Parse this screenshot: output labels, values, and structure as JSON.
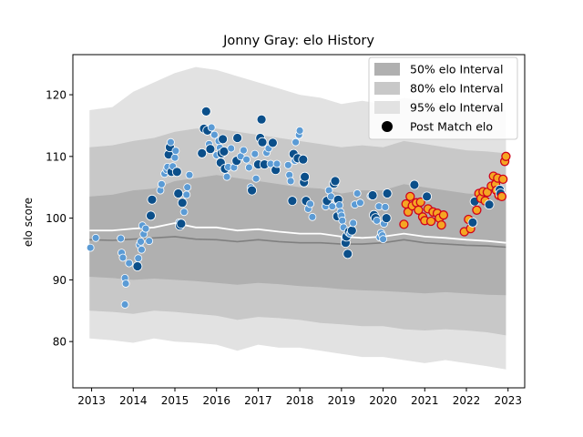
{
  "chart_data": {
    "type": "scatter",
    "title": "Jonny Gray: elo History",
    "xlabel": "",
    "ylabel": "elo score",
    "xlim": [
      2012.55,
      2023.4
    ],
    "ylim": [
      72.5,
      126.5
    ],
    "xticks": [
      2013,
      2014,
      2015,
      2016,
      2017,
      2018,
      2019,
      2020,
      2021,
      2022,
      2023
    ],
    "yticks": [
      80,
      90,
      100,
      110,
      120
    ],
    "grid": false,
    "legend_position": "top-right",
    "legend": {
      "band50": "50% elo Interval",
      "band80": "80% elo Interval",
      "band95": "95% elo Interval",
      "points": "Post Match elo"
    },
    "colors": {
      "band50": "#b0b0b0",
      "band80": "#c8c8c8",
      "band95": "#e2e2e2",
      "median": "#808080",
      "mean": "#ffffff",
      "point_dark": "#0b4f8a",
      "point_light": "#5b9bd5",
      "point_recent": "#f5a623",
      "point_recent_edge": "#d0021b"
    },
    "bands": {
      "x": [
        2012.95,
        2013.5,
        2014.0,
        2014.5,
        2015.0,
        2015.5,
        2016.0,
        2016.5,
        2017.0,
        2017.5,
        2018.0,
        2018.5,
        2019.0,
        2019.5,
        2020.0,
        2020.5,
        2021.0,
        2021.5,
        2022.0,
        2022.5,
        2022.95
      ],
      "p95_low": [
        80.5,
        80.2,
        79.8,
        80.5,
        80.0,
        79.8,
        79.5,
        78.5,
        79.5,
        79.0,
        79.0,
        78.5,
        78.0,
        77.5,
        77.5,
        77.0,
        76.5,
        77.0,
        76.5,
        76.0,
        75.5
      ],
      "p80_low": [
        85.0,
        84.8,
        84.5,
        85.0,
        84.8,
        84.5,
        84.2,
        83.5,
        84.0,
        83.8,
        83.5,
        83.0,
        82.8,
        82.5,
        82.5,
        82.0,
        81.8,
        82.0,
        81.8,
        81.5,
        81.0
      ],
      "p50_low": [
        90.5,
        90.3,
        90.0,
        90.2,
        90.0,
        89.8,
        89.5,
        89.2,
        89.5,
        89.3,
        89.0,
        88.8,
        88.5,
        88.3,
        88.2,
        88.0,
        87.8,
        88.0,
        87.8,
        87.6,
        87.5
      ],
      "p50_high": [
        103.5,
        103.8,
        104.5,
        104.8,
        106.0,
        106.5,
        107.0,
        106.5,
        106.0,
        105.5,
        105.0,
        104.8,
        104.0,
        104.5,
        104.5,
        105.5,
        105.0,
        104.5,
        104.0,
        103.8,
        103.5
      ],
      "p80_high": [
        111.5,
        111.8,
        112.5,
        113.0,
        114.0,
        114.5,
        114.5,
        114.0,
        113.5,
        113.0,
        112.5,
        112.0,
        111.5,
        111.8,
        111.5,
        112.5,
        112.0,
        111.5,
        111.0,
        110.8,
        110.5
      ],
      "p95_high": [
        117.5,
        118.0,
        120.5,
        122.0,
        123.5,
        124.5,
        124.0,
        123.0,
        122.0,
        121.0,
        120.0,
        119.5,
        118.5,
        119.0,
        118.5,
        119.5,
        119.0,
        118.5,
        118.0,
        117.8,
        117.5
      ],
      "median": [
        96.5,
        96.4,
        96.6,
        96.8,
        97.0,
        96.6,
        96.5,
        96.2,
        96.5,
        96.2,
        96.0,
        96.0,
        95.8,
        95.8,
        96.0,
        96.5,
        96.0,
        95.8,
        95.6,
        95.5,
        95.3
      ],
      "mean": [
        98.0,
        98.0,
        98.3,
        98.5,
        99.2,
        98.5,
        98.5,
        98.0,
        98.2,
        97.8,
        97.5,
        97.5,
        97.0,
        96.8,
        97.0,
        97.5,
        97.0,
        96.8,
        96.5,
        96.3,
        96.0
      ]
    },
    "series": [
      {
        "name": "Post Match elo",
        "points": [
          [
            2012.97,
            95.2,
            "l"
          ],
          [
            2013.1,
            96.8,
            "l"
          ],
          [
            2013.7,
            96.7,
            "l"
          ],
          [
            2013.72,
            94.4,
            "l"
          ],
          [
            2013.75,
            93.6,
            "l"
          ],
          [
            2013.8,
            90.3,
            "l"
          ],
          [
            2013.82,
            89.4,
            "l"
          ],
          [
            2013.8,
            86.0,
            "l"
          ],
          [
            2013.9,
            92.7,
            "l"
          ],
          [
            2014.1,
            92.2,
            "d"
          ],
          [
            2014.12,
            93.5,
            "l"
          ],
          [
            2014.15,
            95.7,
            "l"
          ],
          [
            2014.18,
            96.2,
            "l"
          ],
          [
            2014.2,
            94.9,
            "l"
          ],
          [
            2014.25,
            97.4,
            "l"
          ],
          [
            2014.22,
            98.8,
            "l"
          ],
          [
            2014.3,
            98.3,
            "l"
          ],
          [
            2014.38,
            96.3,
            "l"
          ],
          [
            2014.42,
            100.4,
            "d"
          ],
          [
            2014.45,
            103.0,
            "d"
          ],
          [
            2014.65,
            104.5,
            "l"
          ],
          [
            2014.68,
            105.5,
            "l"
          ],
          [
            2014.75,
            107.2,
            "l"
          ],
          [
            2014.8,
            107.8,
            "l"
          ],
          [
            2014.82,
            108.3,
            "l"
          ],
          [
            2014.85,
            110.3,
            "d"
          ],
          [
            2014.88,
            111.5,
            "d"
          ],
          [
            2014.9,
            112.3,
            "l"
          ],
          [
            2014.92,
            107.5,
            "d"
          ],
          [
            2014.95,
            108.4,
            "l"
          ],
          [
            2015.0,
            109.8,
            "l"
          ],
          [
            2015.02,
            110.9,
            "l"
          ],
          [
            2015.05,
            107.5,
            "d"
          ],
          [
            2015.08,
            104.0,
            "d"
          ],
          [
            2015.1,
            99.3,
            "l"
          ],
          [
            2015.12,
            98.8,
            "d"
          ],
          [
            2015.15,
            99.1,
            "d"
          ],
          [
            2015.18,
            102.5,
            "d"
          ],
          [
            2015.22,
            101.0,
            "l"
          ],
          [
            2015.28,
            103.8,
            "l"
          ],
          [
            2015.3,
            105.0,
            "l"
          ],
          [
            2015.35,
            107.0,
            "l"
          ],
          [
            2015.65,
            110.5,
            "d"
          ],
          [
            2015.7,
            114.5,
            "d"
          ],
          [
            2015.75,
            117.3,
            "d"
          ],
          [
            2015.78,
            114.2,
            "d"
          ],
          [
            2015.82,
            112.0,
            "l"
          ],
          [
            2015.85,
            111.2,
            "d"
          ],
          [
            2015.88,
            114.7,
            "l"
          ],
          [
            2015.95,
            113.5,
            "l"
          ],
          [
            2016.0,
            110.2,
            "l"
          ],
          [
            2016.05,
            112.5,
            "l"
          ],
          [
            2016.08,
            111.4,
            "l"
          ],
          [
            2016.1,
            109.0,
            "d"
          ],
          [
            2016.12,
            110.5,
            "d"
          ],
          [
            2016.15,
            112.8,
            "d"
          ],
          [
            2016.18,
            110.8,
            "d"
          ],
          [
            2016.2,
            108.0,
            "d"
          ],
          [
            2016.25,
            106.7,
            "l"
          ],
          [
            2016.28,
            108.3,
            "l"
          ],
          [
            2016.35,
            111.3,
            "l"
          ],
          [
            2016.42,
            108.2,
            "l"
          ],
          [
            2016.48,
            109.3,
            "d"
          ],
          [
            2016.5,
            113.0,
            "d"
          ],
          [
            2016.58,
            110.0,
            "l"
          ],
          [
            2016.65,
            111.0,
            "l"
          ],
          [
            2016.72,
            109.5,
            "l"
          ],
          [
            2016.78,
            108.2,
            "l"
          ],
          [
            2016.82,
            105.0,
            "l"
          ],
          [
            2016.85,
            104.5,
            "d"
          ],
          [
            2016.92,
            110.4,
            "l"
          ],
          [
            2016.95,
            106.4,
            "l"
          ],
          [
            2017.0,
            108.7,
            "d"
          ],
          [
            2017.05,
            113.0,
            "d"
          ],
          [
            2017.08,
            116.0,
            "d"
          ],
          [
            2017.1,
            112.3,
            "d"
          ],
          [
            2017.15,
            108.7,
            "d"
          ],
          [
            2017.2,
            110.6,
            "l"
          ],
          [
            2017.25,
            111.3,
            "l"
          ],
          [
            2017.3,
            108.8,
            "l"
          ],
          [
            2017.35,
            112.2,
            "d"
          ],
          [
            2017.42,
            107.8,
            "d"
          ],
          [
            2017.45,
            108.8,
            "l"
          ],
          [
            2017.72,
            108.6,
            "l"
          ],
          [
            2017.75,
            107.0,
            "l"
          ],
          [
            2017.78,
            106.0,
            "l"
          ],
          [
            2017.82,
            102.8,
            "d"
          ],
          [
            2017.85,
            110.4,
            "d"
          ],
          [
            2017.88,
            109.3,
            "l"
          ],
          [
            2017.9,
            112.3,
            "l"
          ],
          [
            2017.95,
            109.7,
            "d"
          ],
          [
            2017.98,
            113.5,
            "l"
          ],
          [
            2018.0,
            114.2,
            "l"
          ],
          [
            2018.08,
            109.5,
            "d"
          ],
          [
            2018.1,
            105.8,
            "d"
          ],
          [
            2018.12,
            106.7,
            "d"
          ],
          [
            2018.15,
            102.8,
            "d"
          ],
          [
            2018.2,
            101.5,
            "l"
          ],
          [
            2018.25,
            102.3,
            "l"
          ],
          [
            2018.3,
            100.2,
            "l"
          ],
          [
            2018.62,
            101.9,
            "l"
          ],
          [
            2018.65,
            102.8,
            "d"
          ],
          [
            2018.7,
            104.5,
            "l"
          ],
          [
            2018.75,
            103.5,
            "l"
          ],
          [
            2018.78,
            101.9,
            "l"
          ],
          [
            2018.82,
            105.6,
            "d"
          ],
          [
            2018.85,
            106.0,
            "d"
          ],
          [
            2018.88,
            102.8,
            "l"
          ],
          [
            2018.9,
            100.3,
            "d"
          ],
          [
            2018.92,
            103.0,
            "d"
          ],
          [
            2018.95,
            102.1,
            "l"
          ],
          [
            2018.98,
            101.0,
            "l"
          ],
          [
            2019.0,
            100.4,
            "l"
          ],
          [
            2019.02,
            99.6,
            "l"
          ],
          [
            2019.05,
            98.5,
            "l"
          ],
          [
            2019.08,
            96.7,
            "l"
          ],
          [
            2019.1,
            96.0,
            "d"
          ],
          [
            2019.12,
            97.0,
            "d"
          ],
          [
            2019.15,
            94.2,
            "d"
          ],
          [
            2019.18,
            97.8,
            "d"
          ],
          [
            2019.2,
            97.5,
            "l"
          ],
          [
            2019.25,
            98.0,
            "d"
          ],
          [
            2019.28,
            99.2,
            "l"
          ],
          [
            2019.32,
            102.2,
            "l"
          ],
          [
            2019.38,
            104.0,
            "l"
          ],
          [
            2019.45,
            102.5,
            "l"
          ],
          [
            2019.7,
            103.6,
            "l"
          ],
          [
            2019.75,
            103.7,
            "d"
          ],
          [
            2019.78,
            100.5,
            "d"
          ],
          [
            2019.82,
            100.0,
            "d"
          ],
          [
            2019.85,
            99.6,
            "l"
          ],
          [
            2019.9,
            101.9,
            "l"
          ],
          [
            2019.92,
            96.9,
            "l"
          ],
          [
            2019.95,
            97.6,
            "l"
          ],
          [
            2019.98,
            97.2,
            "l"
          ],
          [
            2020.0,
            96.6,
            "l"
          ],
          [
            2020.02,
            99.1,
            "l"
          ],
          [
            2020.05,
            101.8,
            "l"
          ],
          [
            2020.08,
            100.0,
            "d"
          ],
          [
            2020.1,
            104.0,
            "d"
          ],
          [
            2020.5,
            99.0,
            "r"
          ],
          [
            2020.55,
            102.3,
            "r"
          ],
          [
            2020.6,
            101.0,
            "r"
          ],
          [
            2020.65,
            103.5,
            "r"
          ],
          [
            2020.7,
            102.0,
            "r"
          ],
          [
            2020.75,
            105.4,
            "d"
          ],
          [
            2020.8,
            102.5,
            "r"
          ],
          [
            2020.85,
            101.3,
            "r"
          ],
          [
            2020.9,
            102.6,
            "r"
          ],
          [
            2020.95,
            100.2,
            "r"
          ],
          [
            2021.0,
            99.6,
            "r"
          ],
          [
            2021.05,
            103.5,
            "d"
          ],
          [
            2021.08,
            101.5,
            "r"
          ],
          [
            2021.15,
            99.5,
            "r"
          ],
          [
            2021.2,
            101.0,
            "r"
          ],
          [
            2021.3,
            100.8,
            "r"
          ],
          [
            2021.35,
            100.0,
            "r"
          ],
          [
            2021.4,
            98.9,
            "r"
          ],
          [
            2021.45,
            100.5,
            "r"
          ],
          [
            2021.95,
            97.8,
            "r"
          ],
          [
            2022.05,
            99.8,
            "r"
          ],
          [
            2022.1,
            98.3,
            "r"
          ],
          [
            2022.15,
            99.3,
            "d"
          ],
          [
            2022.2,
            102.7,
            "d"
          ],
          [
            2022.25,
            101.3,
            "r"
          ],
          [
            2022.3,
            104.0,
            "r"
          ],
          [
            2022.35,
            103.2,
            "r"
          ],
          [
            2022.4,
            104.3,
            "r"
          ],
          [
            2022.45,
            102.8,
            "r"
          ],
          [
            2022.5,
            104.2,
            "r"
          ],
          [
            2022.55,
            102.2,
            "d"
          ],
          [
            2022.6,
            105.2,
            "r"
          ],
          [
            2022.65,
            106.8,
            "r"
          ],
          [
            2022.7,
            105.5,
            "r"
          ],
          [
            2022.72,
            104.5,
            "r"
          ],
          [
            2022.75,
            106.5,
            "r"
          ],
          [
            2022.78,
            103.7,
            "r"
          ],
          [
            2022.8,
            104.6,
            "d"
          ],
          [
            2022.82,
            104.0,
            "d"
          ],
          [
            2022.85,
            103.5,
            "r"
          ],
          [
            2022.88,
            106.3,
            "r"
          ],
          [
            2022.92,
            109.2,
            "r"
          ],
          [
            2022.95,
            110.0,
            "r"
          ]
        ]
      }
    ]
  }
}
